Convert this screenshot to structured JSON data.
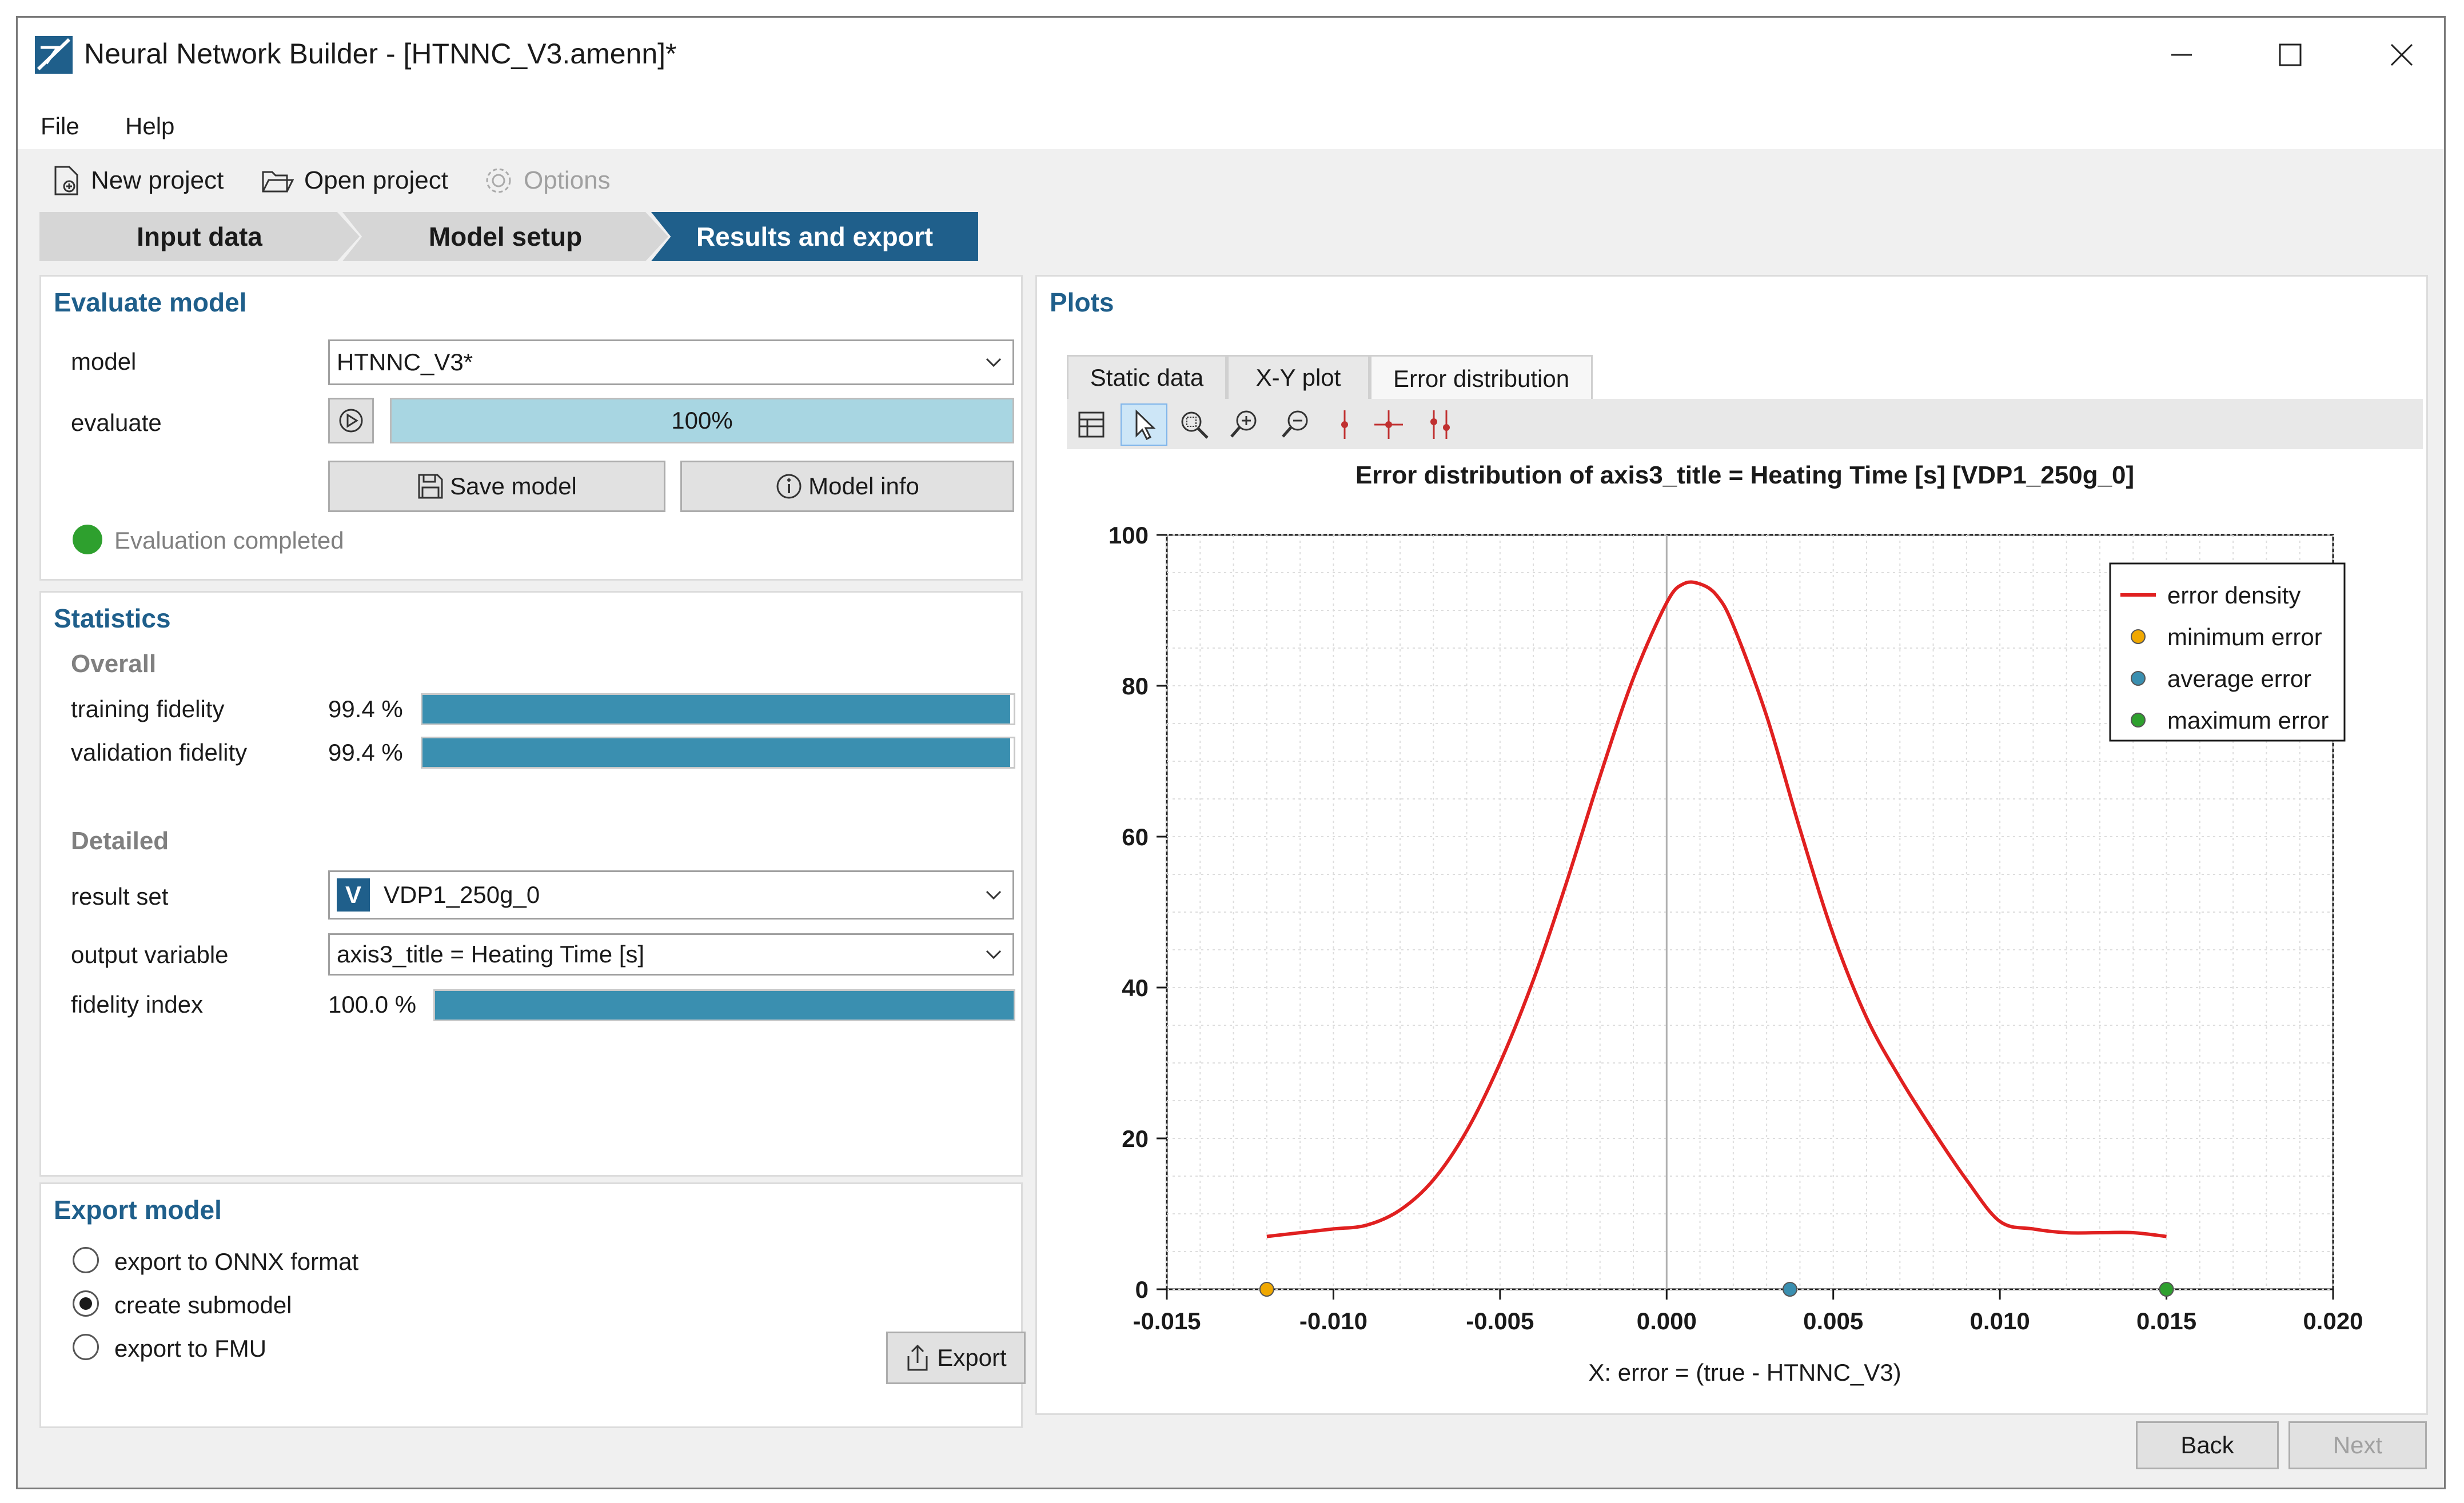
{
  "window": {
    "title": "Neural Network Builder - [HTNNC_V3.amenn]*",
    "controls": [
      "minimize",
      "maximize",
      "close"
    ]
  },
  "menu": {
    "file": "File",
    "help": "Help"
  },
  "toolbar": {
    "new_project": "New project",
    "open_project": "Open project",
    "options": "Options"
  },
  "steps": [
    {
      "label": "Input data",
      "active": false
    },
    {
      "label": "Model setup",
      "active": false
    },
    {
      "label": "Results and export",
      "active": true
    }
  ],
  "evaluate": {
    "title": "Evaluate model",
    "model_label": "model",
    "model_value": "HTNNC_V3*",
    "evaluate_label": "evaluate",
    "progress_text": "100%",
    "progress": 1.0,
    "save_button": "Save model",
    "info_button": "Model info",
    "status": "Evaluation completed",
    "status_color": "#2ea02e"
  },
  "statistics": {
    "title": "Statistics",
    "overall_label": "Overall",
    "training_label": "training fidelity",
    "training_value": "99.4 %",
    "training_fraction": 0.994,
    "validation_label": "validation fidelity",
    "validation_value": "99.4 %",
    "validation_fraction": 0.994,
    "detailed_label": "Detailed",
    "result_set_label": "result set",
    "result_set_badge": "V",
    "result_set_value": "VDP1_250g_0",
    "output_variable_label": "output variable",
    "output_variable_value": "axis3_title = Heating Time [s]",
    "fidelity_label": "fidelity index",
    "fidelity_value": "100.0 %",
    "fidelity_fraction": 1.0
  },
  "export": {
    "title": "Export model",
    "options": [
      {
        "label": "export to ONNX format",
        "selected": false
      },
      {
        "label": "create submodel",
        "selected": true
      },
      {
        "label": "export to FMU",
        "selected": false
      }
    ],
    "button": "Export"
  },
  "plots": {
    "title": "Plots",
    "tabs": [
      "Static data",
      "X-Y plot",
      "Error distribution"
    ],
    "active_tab": "Error distribution"
  },
  "nav": {
    "back": "Back",
    "next": "Next"
  },
  "colors": {
    "accent": "#1f5f8b",
    "progress_fill": "#a8d6e2",
    "bar_fill": "#3a8fb0",
    "curve": "#e02020",
    "minimum": "#f0a800",
    "average": "#3a8fb0",
    "maximum": "#2ea02e"
  },
  "chart_data": {
    "type": "line",
    "title": "Error distribution of axis3_title = Heating Time [s] [VDP1_250g_0]",
    "xlabel": "X: error = (true - HTNNC_V3)",
    "ylabel": "",
    "xlim": [
      -0.015,
      0.02
    ],
    "ylim": [
      0,
      100
    ],
    "x_ticks": [
      "-0.015",
      "-0.010",
      "-0.005",
      "0.000",
      "0.005",
      "0.010",
      "0.015",
      "0.020"
    ],
    "y_ticks": [
      "0",
      "20",
      "40",
      "60",
      "80",
      "100"
    ],
    "grid": true,
    "legend_position": "top-right",
    "series": [
      {
        "name": "error density",
        "x": [
          -0.012,
          -0.011,
          -0.01,
          -0.009,
          -0.008,
          -0.007,
          -0.006,
          -0.005,
          -0.004,
          -0.003,
          -0.002,
          -0.001,
          0.0,
          0.0005,
          0.001,
          0.0015,
          0.002,
          0.003,
          0.004,
          0.005,
          0.006,
          0.007,
          0.008,
          0.009,
          0.01,
          0.011,
          0.012,
          0.013,
          0.014,
          0.015
        ],
        "y": [
          7,
          7.5,
          8,
          8.5,
          10.5,
          14.5,
          21,
          30,
          41,
          54,
          68,
          81,
          91,
          93.5,
          93.5,
          92,
          88,
          76,
          61,
          47,
          36,
          28,
          21,
          14.5,
          9,
          8,
          7.5,
          7.5,
          7.5,
          7
        ]
      },
      {
        "name": "minimum error",
        "x": [
          -0.012
        ],
        "y": [
          0
        ]
      },
      {
        "name": "average error",
        "x": [
          0.0037
        ],
        "y": [
          0
        ]
      },
      {
        "name": "maximum error",
        "x": [
          0.015
        ],
        "y": [
          0
        ]
      }
    ]
  }
}
